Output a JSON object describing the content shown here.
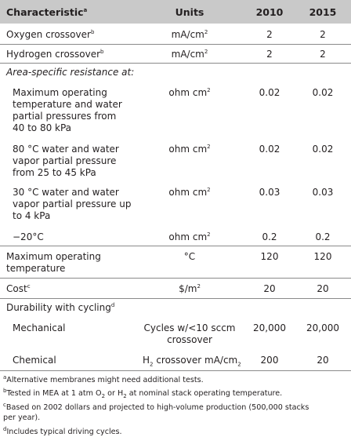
{
  "header": {
    "characteristic": "Characteristic",
    "characteristic_note": "a",
    "units": "Units",
    "year1": "2010",
    "year2": "2015"
  },
  "rows": {
    "oxygen": {
      "label": "Oxygen crossover",
      "note": "b",
      "units": "mA/cm",
      "units_exp": "2",
      "v2010": "2",
      "v2015": "2"
    },
    "hydrogen": {
      "label": "Hydrogen crossover",
      "note": "b",
      "units": "mA/cm",
      "units_exp": "2",
      "v2010": "2",
      "v2015": "2"
    },
    "asr_heading": "Area-specific resistance at:",
    "asr_max": {
      "line1": "Maximum operating",
      "line2": "temperature and water",
      "line3": "partial pressures from",
      "line4": "40 to 80 kPa",
      "units": "ohm cm",
      "units_exp": "2",
      "v2010": "0.02",
      "v2015": "0.02"
    },
    "asr_80": {
      "line1": "80 °C water and water",
      "line2": "vapor partial pressure",
      "line3": "from 25 to 45 kPa",
      "units": "ohm cm",
      "units_exp": "2",
      "v2010": "0.02",
      "v2015": "0.02"
    },
    "asr_30": {
      "line1": "30 °C water and water",
      "line2": "vapor partial pressure up",
      "line3": "to 4 kPa",
      "units": "ohm cm",
      "units_exp": "2",
      "v2010": "0.03",
      "v2015": "0.03"
    },
    "asr_m20": {
      "label": "−20°C",
      "units": "ohm cm",
      "units_exp": "2",
      "v2010": "0.2",
      "v2015": "0.2"
    },
    "max_temp": {
      "line1": "Maximum operating",
      "line2": "temperature",
      "units": "°C",
      "v2010": "120",
      "v2015": "120"
    },
    "cost": {
      "label": "Cost",
      "note": "c",
      "units": "$/m",
      "units_exp": "2",
      "v2010": "20",
      "v2015": "20"
    },
    "durability_heading": "Durability with cycling",
    "durability_note": "d",
    "mechanical": {
      "label": "Mechanical",
      "units_line1": "Cycles w/<10 sccm",
      "units_line2": "crossover",
      "v2010": "20,000",
      "v2015": "20,000"
    },
    "chemical": {
      "label": "Chemical",
      "units_a": "H",
      "units_sub1": "2",
      "units_b": " crossover mA/cm",
      "units_sub2": "2",
      "v2010": "200",
      "v2015": "20"
    }
  },
  "footnotes": {
    "a_mark": "a",
    "a_text": "Alternative membranes might need additional tests.",
    "b_mark": "b",
    "b_text_1": "Tested in MEA at 1 atm O",
    "b_sub1": "2",
    "b_text_2": " or H",
    "b_sub2": "2",
    "b_text_3": " at nominal stack operating temperature.",
    "c_mark": "c",
    "c_line1": "Based on 2002 dollars and projected to high-volume production (500,000 stacks",
    "c_line2": " per year).",
    "d_mark": "d",
    "d_text": "Includes typical driving cycles."
  },
  "colors": {
    "header_bg": "#c9c9c9",
    "rule": "#8a8a8a",
    "text": "#231f20"
  }
}
